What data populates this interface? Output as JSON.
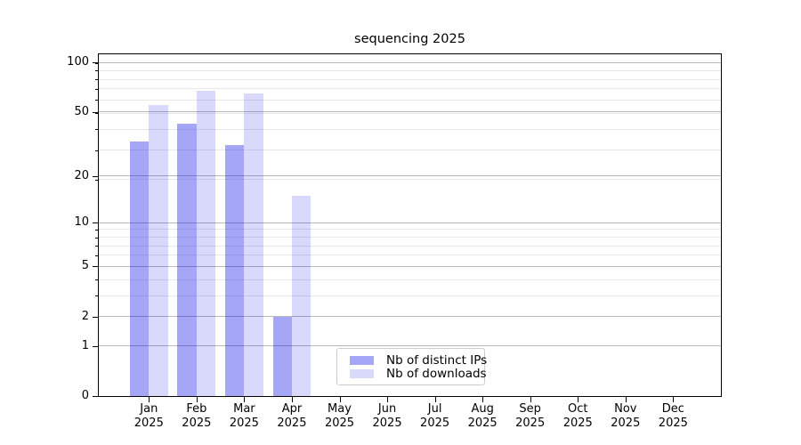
{
  "chart_data": {
    "type": "bar",
    "title": "sequencing 2025",
    "categories": [
      "Jan",
      "Feb",
      "Mar",
      "Apr",
      "May",
      "Jun",
      "Jul",
      "Aug",
      "Sep",
      "Oct",
      "Nov",
      "Dec"
    ],
    "x_tick_second_line": "2025",
    "series": [
      {
        "name": "Nb of distinct IPs",
        "alpha": 0.35,
        "values": [
          33,
          42,
          31,
          2,
          null,
          null,
          null,
          null,
          null,
          null,
          null,
          null
        ]
      },
      {
        "name": "Nb of downloads",
        "alpha": 0.15,
        "values": [
          55,
          67,
          65,
          15,
          null,
          null,
          null,
          null,
          null,
          null,
          null,
          null
        ]
      }
    ],
    "bar_base_color": "#0000e6",
    "y_scale": "log10(1+v)",
    "y_ticks": [
      0,
      1,
      2,
      5,
      10,
      20,
      50,
      100
    ],
    "y_minor_ticks_offset1": [
      2,
      3,
      4,
      5,
      6,
      7,
      8,
      9,
      10,
      20,
      30,
      40,
      50,
      60,
      70,
      80,
      90,
      100
    ],
    "ylim": [
      0,
      112
    ],
    "xlabel": "",
    "ylabel": "",
    "grid": {
      "major_color": "#b9b9b9",
      "minor_color": "#e8e8e8"
    },
    "legend_position": "lower center",
    "axis_color": "#000000"
  }
}
